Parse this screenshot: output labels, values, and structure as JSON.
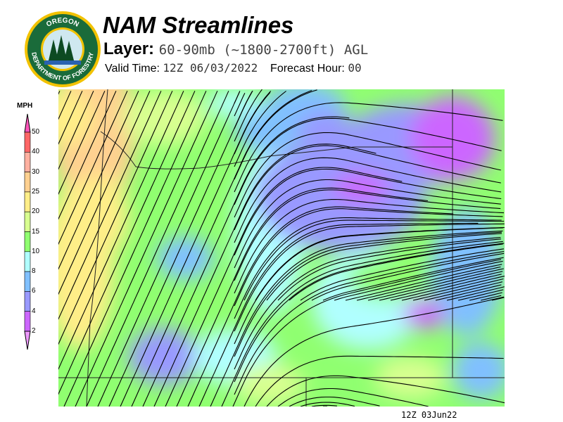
{
  "logo": {
    "top_text": "OREGON",
    "bottom_text": "DEPARTMENT OF FORESTRY"
  },
  "header": {
    "title": "NAM Streamlines",
    "layer_label": "Layer:",
    "layer_value": "60-90mb (~1800-2700ft) AGL",
    "valid_label": "Valid Time:",
    "valid_value": "12Z 06/03/2022",
    "forecast_label": "Forecast Hour:",
    "forecast_value": "00"
  },
  "legend": {
    "unit": "MPH",
    "labels": [
      "50",
      "40",
      "30",
      "25",
      "20",
      "15",
      "10",
      "8",
      "6",
      "4",
      "2"
    ],
    "colors": [
      "#ff6666",
      "#ffb0a0",
      "#ffd090",
      "#ffee88",
      "#d8ff90",
      "#90ff70",
      "#b0ffff",
      "#80c0ff",
      "#9999ff",
      "#cc66ff"
    ],
    "over_color": "#ff55bb",
    "under_color": "#ee99ff"
  },
  "footer": {
    "timestamp": "12Z 03Jun22"
  }
}
